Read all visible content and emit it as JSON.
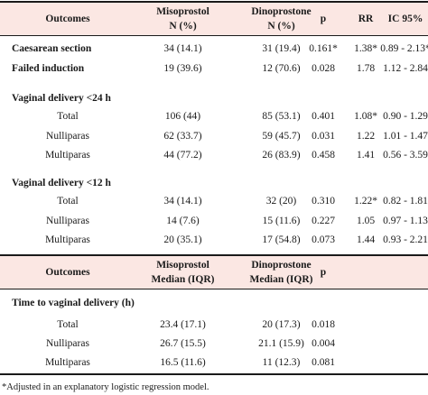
{
  "header1": {
    "outcomes": "Outcomes",
    "miso": [
      "Misoprostol",
      "N (%)"
    ],
    "dino": [
      "Dinoprostone",
      "N (%)"
    ],
    "p": "p",
    "rr": "RR",
    "ic": "IC 95%"
  },
  "rows1": {
    "caesarean": [
      "Caesarean section",
      "34 (14.1)",
      "31 (19.4)",
      "0.161*",
      "1.38*",
      "0.89 - 2.13*"
    ],
    "failed": [
      "Failed induction",
      "19 (39.6)",
      "12 (70.6)",
      "0.028",
      "1.78",
      "1.12 - 2.84"
    ],
    "vd24_title": "Vaginal delivery <24 h",
    "vd24_total": [
      "Total",
      "106 (44)",
      "85 (53.1)",
      "0.401",
      "1.08*",
      "0.90 - 1.29"
    ],
    "vd24_nulli": [
      "Nulliparas",
      "62 (33.7)",
      "59 (45.7)",
      "0.031",
      "1.22",
      "1.01 - 1.47"
    ],
    "vd24_multi": [
      "Multiparas",
      "44 (77.2)",
      "26 (83.9)",
      "0.458",
      "1.41",
      "0.56 - 3.59"
    ],
    "vd12_title": "Vaginal delivery <12 h",
    "vd12_total": [
      "Total",
      "34 (14.1)",
      "32 (20)",
      "0.310",
      "1.22*",
      "0.82 - 1.81"
    ],
    "vd12_nulli": [
      "Nulliparas",
      "14 (7.6)",
      "15 (11.6)",
      "0.227",
      "1.05",
      "0.97 - 1.13"
    ],
    "vd12_multi": [
      "Multiparas",
      "20 (35.1)",
      "17 (54.8)",
      "0.073",
      "1.44",
      "0.93 - 2.21"
    ]
  },
  "header2": {
    "outcomes": "Outcomes",
    "miso": [
      "Misoprostol",
      "Median (IQR)"
    ],
    "dino": [
      "Dinoprostone",
      "Median (IQR)"
    ],
    "p": "p"
  },
  "rows2": {
    "time_title": "Time to vaginal delivery (h)",
    "total": [
      "Total",
      "23.4 (17.1)",
      "20 (17.3)",
      "0.018"
    ],
    "nulli": [
      "Nulliparas",
      "26.7 (15.5)",
      "21.1 (15.9)",
      "0.004"
    ],
    "multi": [
      "Multiparas",
      "16.5 (11.6)",
      "11 (12.3)",
      "0.081"
    ]
  },
  "footnote": "*Adjusted in an explanatory logistic regression model.",
  "colors": {
    "band": "#fbe7e3",
    "rule": "#1a1a1a"
  }
}
